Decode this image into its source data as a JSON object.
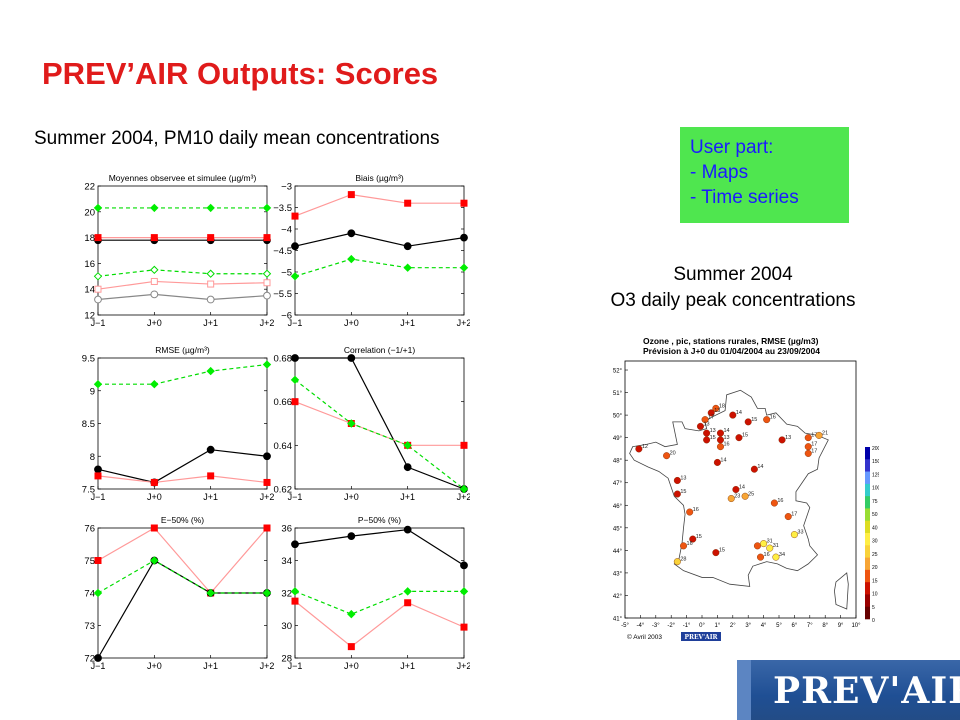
{
  "slide": {
    "title": "PREV’AIR Outputs: Scores",
    "left_subtitle": "Summer 2004, PM10 daily mean concentrations",
    "user_box": {
      "heading": "User part:",
      "items": [
        "- Maps",
        "- Time series"
      ],
      "background": "#4fe64f",
      "text_color": "#1b1bff"
    },
    "map_caption": {
      "line1": "Summer 2004",
      "line2": "O3 daily peak concentrations"
    },
    "logo_text": "PREV'AIR"
  },
  "colors": {
    "title": "#e01b1b",
    "black_series": "#000000",
    "red_series": "#ff0000",
    "pink_series": "#ff9999",
    "green_series": "#00dd00"
  },
  "chart_data": [
    {
      "type": "line",
      "title": "Moyennes observee et simulee (µg/m³)",
      "categories": [
        "J−1",
        "J+0",
        "J+1",
        "J+2"
      ],
      "ylim": [
        12,
        22
      ],
      "yticks": [
        "12",
        "14",
        "16",
        "18",
        "20",
        "22"
      ],
      "series": [
        {
          "values": [
            17.8,
            17.8,
            17.8,
            17.8
          ],
          "style": "black-filled"
        },
        {
          "values": [
            18.0,
            18.0,
            18.0,
            18.0
          ],
          "style": "red-filled"
        },
        {
          "values": [
            20.3,
            20.3,
            20.3,
            20.3
          ],
          "style": "green-dashed"
        },
        {
          "values": [
            15.0,
            15.5,
            15.2,
            15.2
          ],
          "style": "green-dashed-open"
        },
        {
          "values": [
            14.0,
            14.6,
            14.4,
            14.5
          ],
          "style": "pink-open-square"
        },
        {
          "values": [
            13.2,
            13.6,
            13.2,
            13.5
          ],
          "style": "grey-open-circle"
        }
      ]
    },
    {
      "type": "line",
      "title": "Biais (µg/m³)",
      "categories": [
        "J−1",
        "J+0",
        "J+1",
        "J+2"
      ],
      "ylim": [
        -6,
        -3
      ],
      "yticks": [
        "−6",
        "−5.5",
        "−5",
        "−4.5",
        "−4",
        "−3.5",
        "−3"
      ],
      "series": [
        {
          "values": [
            -3.7,
            -3.2,
            -3.4,
            -3.4
          ],
          "style": "red-filled"
        },
        {
          "values": [
            -4.4,
            -4.1,
            -4.4,
            -4.2
          ],
          "style": "black-filled"
        },
        {
          "values": [
            -5.1,
            -4.7,
            -4.9,
            -4.9
          ],
          "style": "green-dashed"
        }
      ]
    },
    {
      "type": "line",
      "title": "RMSE (µg/m³)",
      "categories": [
        "J−1",
        "J+0",
        "J+1",
        "J+2"
      ],
      "ylim": [
        7.5,
        9.5
      ],
      "yticks": [
        "7.5",
        "8",
        "8.5",
        "9",
        "9.5"
      ],
      "series": [
        {
          "values": [
            9.1,
            9.1,
            9.3,
            9.4
          ],
          "style": "green-dashed"
        },
        {
          "values": [
            7.8,
            7.6,
            8.1,
            8.0
          ],
          "style": "black-filled"
        },
        {
          "values": [
            7.7,
            7.6,
            7.7,
            7.6
          ],
          "style": "red-filled"
        }
      ]
    },
    {
      "type": "line",
      "title": "Correlation (−1/+1)",
      "categories": [
        "J−1",
        "J+0",
        "J+1",
        "J+2"
      ],
      "ylim": [
        0.62,
        0.68
      ],
      "yticks": [
        "0.62",
        "0.64",
        "0.66",
        "0.68"
      ],
      "series": [
        {
          "values": [
            0.68,
            0.68,
            0.63,
            0.62
          ],
          "style": "black-filled"
        },
        {
          "values": [
            0.66,
            0.65,
            0.64,
            0.64
          ],
          "style": "red-filled"
        },
        {
          "values": [
            0.67,
            0.65,
            0.64,
            0.62
          ],
          "style": "green-dashed"
        }
      ]
    },
    {
      "type": "line",
      "title": "E−50% (%)",
      "categories": [
        "J−1",
        "J+0",
        "J+1",
        "J+2"
      ],
      "ylim": [
        72,
        76
      ],
      "yticks": [
        "72",
        "73",
        "74",
        "75",
        "76"
      ],
      "series": [
        {
          "values": [
            75,
            76,
            74,
            76
          ],
          "style": "red-filled"
        },
        {
          "values": [
            72,
            75,
            74,
            74
          ],
          "style": "black-filled"
        },
        {
          "values": [
            74,
            75,
            74,
            74
          ],
          "style": "green-dashed"
        }
      ]
    },
    {
      "type": "line",
      "title": "P−50% (%)",
      "categories": [
        "J−1",
        "J+0",
        "J+1",
        "J+2"
      ],
      "ylim": [
        28,
        36
      ],
      "yticks": [
        "28",
        "30",
        "32",
        "34",
        "36"
      ],
      "series": [
        {
          "values": [
            35.0,
            35.5,
            35.9,
            33.7
          ],
          "style": "black-filled"
        },
        {
          "values": [
            32.1,
            30.7,
            32.1,
            32.1
          ],
          "style": "green-dashed"
        },
        {
          "values": [
            31.5,
            28.7,
            31.4,
            29.9
          ],
          "style": "red-filled"
        }
      ]
    },
    {
      "type": "scatter",
      "title": "Ozone , pic, stations rurales, RMSE (µg/m3)",
      "subtitle": "Prévision à J+0 du 01/04/2004 au 23/09/2004",
      "footer": "© Avril 2003",
      "footer_logo": "PREV'AIR",
      "lat_ticks": [
        "41°",
        "42°",
        "43°",
        "44°",
        "45°",
        "46°",
        "47°",
        "48°",
        "49°",
        "50°",
        "51°",
        "52°"
      ],
      "lon_ticks": [
        "-5°",
        "-4°",
        "-3°",
        "-2°",
        "-1°",
        "0°",
        "1°",
        "2°",
        "3°",
        "4°",
        "5°",
        "6°",
        "7°",
        "8°",
        "9°",
        "10°"
      ],
      "colorbar_labels": [
        "200",
        "150",
        "125",
        "100",
        "75",
        "50",
        "40",
        "30",
        "25",
        "20",
        "15",
        "10",
        "5",
        "0"
      ],
      "points": [
        {
          "lon": 0.9,
          "lat": 50.3,
          "value": 18
        },
        {
          "lon": 0.6,
          "lat": 50.1,
          "value": 13
        },
        {
          "lon": 2.0,
          "lat": 50.0,
          "value": 14
        },
        {
          "lon": 0.2,
          "lat": 49.8,
          "value": 17
        },
        {
          "lon": 3.0,
          "lat": 49.7,
          "value": 15
        },
        {
          "lon": 4.2,
          "lat": 49.8,
          "value": 16
        },
        {
          "lon": -0.1,
          "lat": 49.5,
          "value": 13
        },
        {
          "lon": 0.3,
          "lat": 49.2,
          "value": 13
        },
        {
          "lon": 1.2,
          "lat": 49.2,
          "value": 14
        },
        {
          "lon": 0.3,
          "lat": 48.9,
          "value": 15
        },
        {
          "lon": 1.2,
          "lat": 48.9,
          "value": 13
        },
        {
          "lon": 2.4,
          "lat": 49.0,
          "value": 15
        },
        {
          "lon": 1.2,
          "lat": 48.6,
          "value": 16
        },
        {
          "lon": 5.2,
          "lat": 48.9,
          "value": 13
        },
        {
          "lon": 6.9,
          "lat": 49.0,
          "value": 17
        },
        {
          "lon": 7.6,
          "lat": 49.1,
          "value": 21
        },
        {
          "lon": 6.9,
          "lat": 48.6,
          "value": 17
        },
        {
          "lon": 6.9,
          "lat": 48.3,
          "value": 17
        },
        {
          "lon": -4.1,
          "lat": 48.5,
          "value": 12
        },
        {
          "lon": -2.3,
          "lat": 48.2,
          "value": 20
        },
        {
          "lon": 1.0,
          "lat": 47.9,
          "value": 14
        },
        {
          "lon": 3.4,
          "lat": 47.6,
          "value": 14
        },
        {
          "lon": -1.6,
          "lat": 47.1,
          "value": 13
        },
        {
          "lon": 2.2,
          "lat": 46.7,
          "value": 14
        },
        {
          "lon": -1.6,
          "lat": 46.5,
          "value": 15
        },
        {
          "lon": 1.9,
          "lat": 46.3,
          "value": 23
        },
        {
          "lon": 2.8,
          "lat": 46.4,
          "value": 25
        },
        {
          "lon": 4.7,
          "lat": 46.1,
          "value": 16
        },
        {
          "lon": -0.8,
          "lat": 45.7,
          "value": 16
        },
        {
          "lon": 5.6,
          "lat": 45.5,
          "value": 17
        },
        {
          "lon": 6.0,
          "lat": 44.7,
          "value": 33
        },
        {
          "lon": -0.6,
          "lat": 44.5,
          "value": 15
        },
        {
          "lon": -1.2,
          "lat": 44.2,
          "value": 16
        },
        {
          "lon": 0.9,
          "lat": 43.9,
          "value": 15
        },
        {
          "lon": 3.6,
          "lat": 44.2,
          "value": 16
        },
        {
          "lon": 4.0,
          "lat": 44.3,
          "value": 31
        },
        {
          "lon": 4.4,
          "lat": 44.1,
          "value": 31
        },
        {
          "lon": 3.8,
          "lat": 43.7,
          "value": 16
        },
        {
          "lon": 4.8,
          "lat": 43.7,
          "value": 34
        },
        {
          "lon": -1.6,
          "lat": 43.5,
          "value": 28
        }
      ]
    }
  ]
}
